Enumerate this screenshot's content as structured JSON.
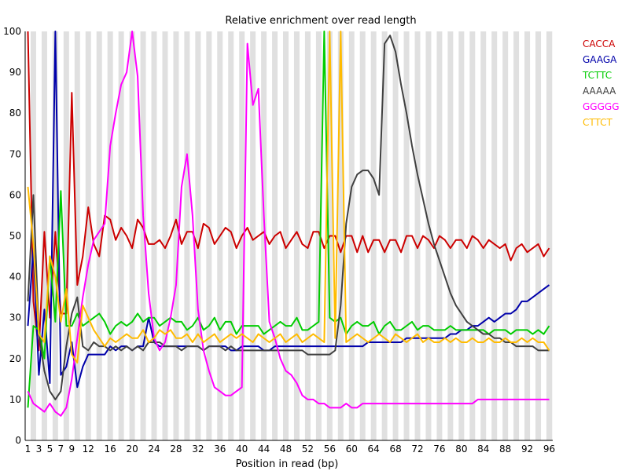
{
  "chart_data": {
    "type": "line",
    "title": "Relative enrichment over read length",
    "xlabel": "Position in read (bp)",
    "ylabel": "",
    "ylim": [
      0,
      100
    ],
    "y_ticks": [
      0,
      10,
      20,
      30,
      40,
      50,
      60,
      70,
      80,
      90,
      100
    ],
    "x_ticks": [
      1,
      3,
      5,
      7,
      9,
      12,
      16,
      20,
      24,
      28,
      32,
      36,
      40,
      44,
      48,
      52,
      56,
      60,
      64,
      68,
      72,
      76,
      80,
      84,
      88,
      92,
      96
    ],
    "grid": "alternating vertical bands",
    "legend_position": "top-right",
    "series": [
      {
        "name": "CACCA",
        "color": "#cc0000",
        "values": [
          100,
          34,
          22,
          51,
          30,
          51,
          31,
          31,
          85,
          38,
          45,
          57,
          48,
          45,
          55,
          54,
          49,
          52,
          50,
          47,
          54,
          52,
          48,
          48,
          49,
          47,
          50,
          54,
          48,
          51,
          51,
          47,
          53,
          52,
          48,
          50,
          52,
          51,
          47,
          50,
          52,
          49,
          50,
          51,
          48,
          50,
          51,
          47,
          49,
          51,
          48,
          47,
          51,
          51,
          47,
          50,
          50,
          46,
          50,
          50,
          46,
          50,
          46,
          49,
          49,
          46,
          49,
          49,
          46,
          50,
          50,
          47,
          50,
          49,
          47,
          50,
          49,
          47,
          49,
          49,
          47,
          50,
          49,
          47,
          49,
          48,
          47,
          48,
          44,
          47,
          48,
          46,
          47,
          48,
          45,
          47
        ]
      },
      {
        "name": "GAAGA",
        "color": "#0000aa",
        "values": [
          28,
          47,
          16,
          32,
          14,
          100,
          16,
          18,
          24,
          13,
          18,
          21,
          21,
          21,
          21,
          23,
          22,
          23,
          23,
          22,
          23,
          23,
          30,
          24,
          23,
          23,
          23,
          23,
          23,
          23,
          23,
          23,
          22,
          23,
          23,
          23,
          23,
          22,
          22,
          23,
          23,
          23,
          23,
          22,
          22,
          23,
          23,
          23,
          23,
          23,
          23,
          23,
          23,
          23,
          23,
          23,
          23,
          23,
          23,
          23,
          23,
          23,
          24,
          24,
          24,
          24,
          24,
          24,
          24,
          25,
          25,
          25,
          25,
          25,
          25,
          25,
          25,
          26,
          26,
          27,
          27,
          28,
          28,
          29,
          30,
          29,
          30,
          31,
          31,
          32,
          34,
          34,
          35,
          36,
          37,
          38
        ]
      },
      {
        "name": "TCTTC",
        "color": "#00cc00",
        "values": [
          8,
          28,
          27,
          20,
          45,
          29,
          61,
          28,
          28,
          31,
          28,
          29,
          30,
          31,
          29,
          26,
          28,
          29,
          28,
          29,
          31,
          29,
          30,
          30,
          28,
          29,
          30,
          29,
          29,
          27,
          28,
          30,
          27,
          28,
          30,
          27,
          29,
          29,
          26,
          28,
          28,
          28,
          28,
          26,
          27,
          28,
          29,
          28,
          28,
          30,
          27,
          27,
          28,
          29,
          100,
          30,
          29,
          30,
          26,
          28,
          29,
          28,
          28,
          29,
          26,
          28,
          29,
          27,
          27,
          28,
          29,
          27,
          28,
          28,
          27,
          27,
          27,
          28,
          27,
          27,
          27,
          27,
          27,
          27,
          26,
          27,
          27,
          27,
          26,
          27,
          27,
          27,
          26,
          27,
          26,
          28
        ]
      },
      {
        "name": "AAAAA",
        "color": "#404040",
        "values": [
          34,
          60,
          26,
          17,
          12,
          10,
          12,
          23,
          31,
          35,
          23,
          22,
          24,
          23,
          23,
          22,
          23,
          22,
          23,
          22,
          23,
          22,
          24,
          24,
          24,
          23,
          23,
          23,
          22,
          23,
          23,
          23,
          22,
          23,
          23,
          23,
          22,
          23,
          22,
          22,
          22,
          22,
          22,
          22,
          22,
          22,
          22,
          22,
          22,
          22,
          22,
          21,
          21,
          21,
          21,
          21,
          22,
          33,
          53,
          62,
          65,
          66,
          66,
          64,
          60,
          97,
          99,
          95,
          87,
          80,
          72,
          65,
          59,
          53,
          48,
          44,
          40,
          36,
          33,
          31,
          29,
          28,
          27,
          26,
          26,
          25,
          25,
          24,
          24,
          23,
          23,
          23,
          23,
          22,
          22,
          22
        ]
      },
      {
        "name": "GGGGG",
        "color": "#ff00ff",
        "values": [
          12,
          9,
          8,
          7,
          9,
          7,
          6,
          8,
          15,
          25,
          35,
          43,
          49,
          51,
          53,
          72,
          80,
          87,
          90,
          100,
          89,
          55,
          36,
          25,
          22,
          24,
          30,
          38,
          62,
          70,
          55,
          32,
          22,
          17,
          13,
          12,
          11,
          11,
          12,
          13,
          97,
          82,
          86,
          55,
          29,
          25,
          20,
          17,
          16,
          14,
          11,
          10,
          10,
          9,
          9,
          8,
          8,
          8,
          9,
          8,
          8,
          9,
          9,
          9,
          9,
          9,
          9,
          9,
          9,
          9,
          9,
          9,
          9,
          9,
          9,
          9,
          9,
          9,
          9,
          9,
          9,
          9,
          10,
          10,
          10,
          10,
          10,
          10,
          10,
          10,
          10,
          10,
          10,
          10,
          10,
          10
        ]
      },
      {
        "name": "CTTCT",
        "color": "#ffbb00",
        "values": [
          62,
          48,
          26,
          24,
          45,
          40,
          29,
          37,
          21,
          19,
          33,
          30,
          27,
          25,
          23,
          25,
          24,
          25,
          26,
          25,
          25,
          27,
          24,
          25,
          27,
          26,
          27,
          25,
          25,
          26,
          24,
          26,
          24,
          25,
          26,
          24,
          25,
          26,
          25,
          26,
          25,
          24,
          26,
          25,
          24,
          25,
          26,
          24,
          25,
          26,
          24,
          25,
          26,
          25,
          24,
          100,
          25,
          100,
          24,
          25,
          26,
          25,
          24,
          25,
          26,
          25,
          24,
          26,
          25,
          24,
          25,
          26,
          24,
          25,
          24,
          24,
          25,
          24,
          25,
          24,
          24,
          25,
          24,
          24,
          25,
          24,
          24,
          25,
          24,
          24,
          25,
          24,
          25,
          24,
          24,
          22
        ]
      }
    ]
  }
}
